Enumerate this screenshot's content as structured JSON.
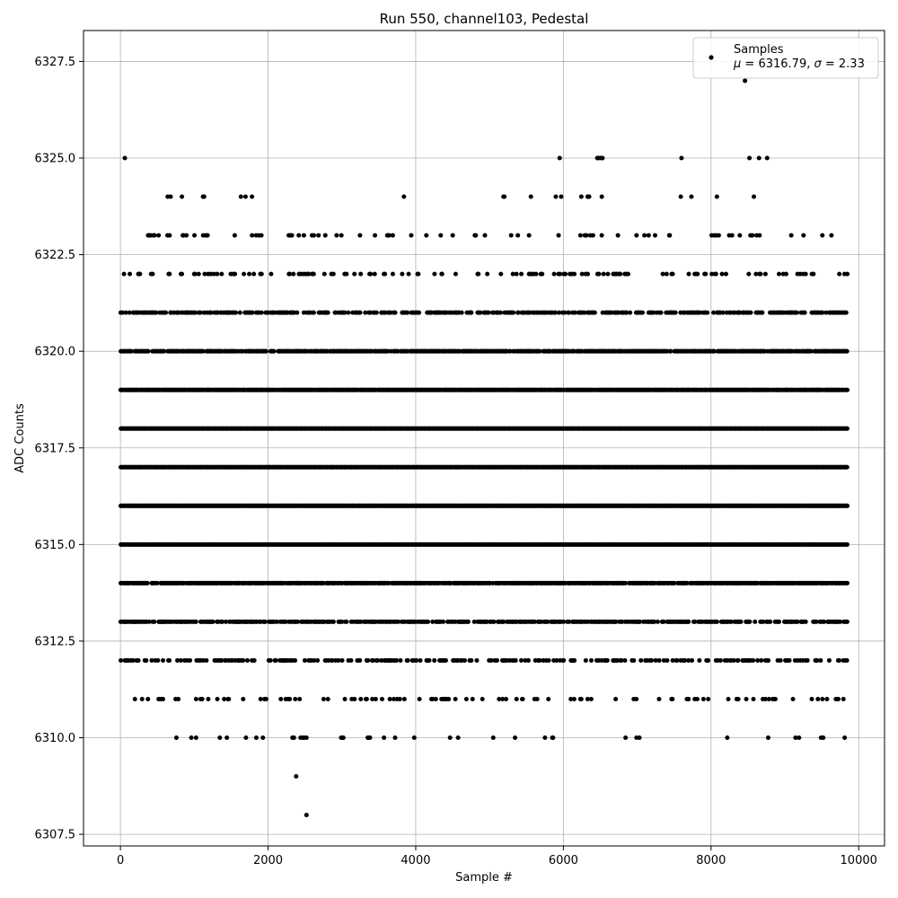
{
  "chart_data": {
    "type": "scatter",
    "title": "Run 550, channel103, Pedestal",
    "xlabel": "Sample #",
    "ylabel": "ADC Counts",
    "xlim": [
      -500,
      10350
    ],
    "ylim": [
      6307.2,
      6328.3
    ],
    "xticks": [
      0,
      2000,
      4000,
      6000,
      8000,
      10000
    ],
    "yticks": [
      6307.5,
      6310.0,
      6312.5,
      6315.0,
      6317.5,
      6320.0,
      6322.5,
      6325.0,
      6327.5
    ],
    "grid": true,
    "legend": {
      "placement": "top-right",
      "series_name": "Samples",
      "stats": {
        "mu": "6316.79",
        "sigma": "2.33"
      }
    },
    "series": [
      {
        "name": "Samples",
        "color": "#000000",
        "x_range": [
          0,
          9850
        ],
        "count": 9850,
        "level_density": {
          "6315": 1.0,
          "6316": 1.0,
          "6317": 1.0,
          "6318": 1.0,
          "6319": 0.92,
          "6314": 0.8,
          "6320": 0.75,
          "6313": 0.55,
          "6321": 0.5,
          "6312": 0.32,
          "6322": 0.14,
          "6311": 0.11,
          "6323": 0.09,
          "6310": 0.02,
          "6324": 0.015
        },
        "sparse_points": [
          [
            60,
            6325
          ],
          [
            5950,
            6325
          ],
          [
            6460,
            6325
          ],
          [
            6480,
            6325
          ],
          [
            6510,
            6325
          ],
          [
            6530,
            6325
          ],
          [
            7600,
            6325
          ],
          [
            8520,
            6325
          ],
          [
            8650,
            6325
          ],
          [
            8760,
            6325
          ],
          [
            680,
            6324
          ],
          [
            1120,
            6324
          ],
          [
            3840,
            6324
          ],
          [
            5200,
            6324
          ],
          [
            5560,
            6324
          ],
          [
            5970,
            6324
          ],
          [
            6330,
            6324
          ],
          [
            6520,
            6324
          ],
          [
            7590,
            6324
          ],
          [
            8580,
            6324
          ],
          [
            960,
            6310
          ],
          [
            1700,
            6310
          ],
          [
            1930,
            6310
          ],
          [
            2330,
            6310
          ],
          [
            2350,
            6310
          ],
          [
            2440,
            6310
          ],
          [
            2470,
            6310
          ],
          [
            2490,
            6310
          ],
          [
            2520,
            6310
          ],
          [
            2990,
            6310
          ],
          [
            3000,
            6310
          ],
          [
            3020,
            6310
          ],
          [
            3350,
            6310
          ],
          [
            3360,
            6310
          ],
          [
            3380,
            6310
          ],
          [
            3570,
            6310
          ],
          [
            3980,
            6310
          ],
          [
            5050,
            6310
          ],
          [
            7030,
            6310
          ],
          [
            9490,
            6310
          ],
          [
            9520,
            6310
          ],
          [
            9810,
            6310
          ],
          [
            2380,
            6309
          ],
          [
            2520,
            6308
          ],
          [
            8460,
            6327
          ]
        ]
      }
    ]
  }
}
